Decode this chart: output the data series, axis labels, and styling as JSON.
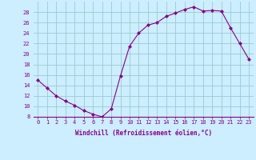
{
  "x": [
    0,
    1,
    2,
    3,
    4,
    5,
    6,
    7,
    8,
    9,
    10,
    11,
    12,
    13,
    14,
    15,
    16,
    17,
    18,
    19,
    20,
    21,
    22,
    23
  ],
  "y": [
    15,
    13.5,
    12,
    11,
    10.2,
    9.2,
    8.5,
    8.0,
    9.5,
    15.8,
    21.5,
    24.0,
    25.5,
    26.0,
    27.2,
    27.8,
    28.5,
    29.0,
    28.2,
    28.3,
    28.2,
    25.0,
    22.0,
    19.0
  ],
  "line_color": "#880088",
  "marker": "D",
  "marker_size": 2.0,
  "marker_lw": 0.5,
  "bg_color": "#cceeff",
  "grid_color": "#99cccc",
  "xlabel": "Windchill (Refroidissement éolien,°C)",
  "xlabel_color": "#880088",
  "tick_color": "#880088",
  "ylim": [
    8,
    30
  ],
  "xlim": [
    -0.5,
    23.5
  ],
  "yticks": [
    8,
    10,
    12,
    14,
    16,
    18,
    20,
    22,
    24,
    26,
    28
  ],
  "xticks": [
    0,
    1,
    2,
    3,
    4,
    5,
    6,
    7,
    8,
    9,
    10,
    11,
    12,
    13,
    14,
    15,
    16,
    17,
    18,
    19,
    20,
    21,
    22,
    23
  ],
  "xtick_labels": [
    "0",
    "1",
    "2",
    "3",
    "4",
    "5",
    "6",
    "7",
    "8",
    "9",
    "10",
    "11",
    "12",
    "13",
    "14",
    "15",
    "16",
    "17",
    "18",
    "19",
    "20",
    "21",
    "22",
    "23"
  ],
  "ytick_labels": [
    "8",
    "10",
    "12",
    "14",
    "16",
    "18",
    "20",
    "22",
    "24",
    "26",
    "28"
  ],
  "tick_fontsize": 5.0,
  "xlabel_fontsize": 5.5,
  "line_width": 0.8
}
